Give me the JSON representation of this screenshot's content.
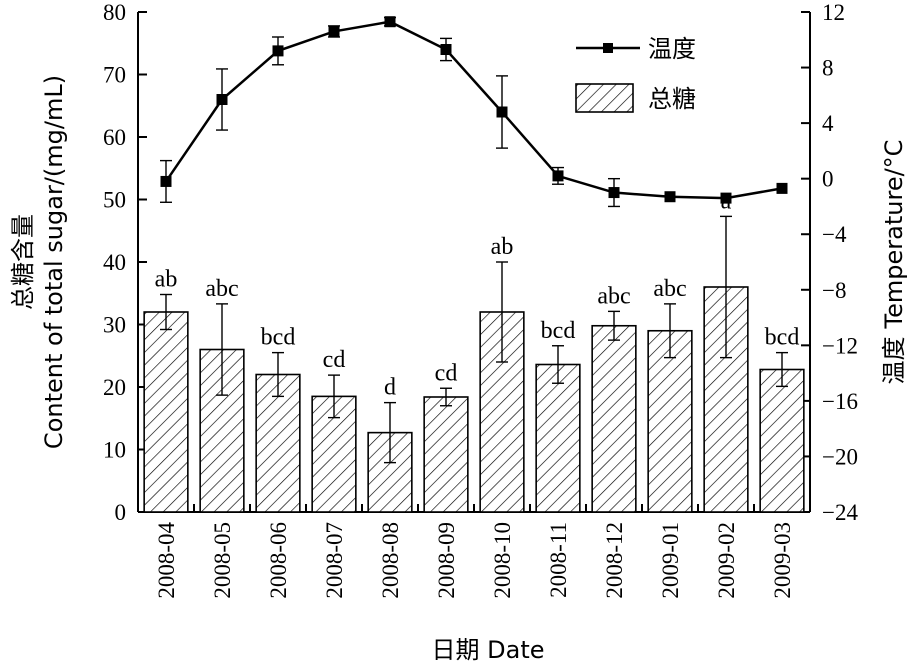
{
  "chart_data": {
    "type": "bar",
    "categories": [
      "2008-04",
      "2008-05",
      "2008-06",
      "2008-07",
      "2008-08",
      "2008-09",
      "2008-10",
      "2008-11",
      "2008-12",
      "2009-01",
      "2009-02",
      "2009-03"
    ],
    "series": [
      {
        "name": "总糖",
        "type": "bar",
        "axis": "left",
        "values": [
          32.0,
          26.0,
          22.0,
          18.5,
          12.7,
          18.4,
          32.0,
          23.6,
          29.8,
          29.0,
          36.0,
          22.8
        ],
        "error": [
          2.8,
          7.3,
          3.5,
          3.4,
          4.8,
          1.4,
          8.0,
          3.0,
          2.3,
          4.3,
          11.3,
          2.7
        ],
        "labels": [
          "ab",
          "abc",
          "bcd",
          "cd",
          "d",
          "cd",
          "ab",
          "bcd",
          "abc",
          "abc",
          "a",
          "bcd"
        ]
      },
      {
        "name": "温度",
        "type": "line",
        "axis": "right",
        "values": [
          -0.2,
          5.7,
          9.2,
          10.6,
          11.3,
          9.3,
          4.8,
          0.2,
          -1.0,
          -1.3,
          -1.4,
          -0.7
        ],
        "error": [
          1.5,
          2.2,
          1.0,
          0.4,
          0.3,
          0.8,
          2.6,
          0.6,
          1.0,
          0.0,
          0.0,
          0.0
        ]
      }
    ],
    "xlabel": "日期 Date",
    "ylabel": "总糖含量 Content of total sugar/(mg/mL)",
    "y2label": "温度 Temperature/°C",
    "ylim": [
      0,
      80
    ],
    "y2lim": [
      -24,
      12
    ],
    "yticks": [
      0,
      10,
      20,
      30,
      40,
      50,
      60,
      70,
      80
    ],
    "y2ticks": [
      -24,
      -20,
      -16,
      -12,
      -8,
      -4,
      0,
      4,
      8,
      12
    ],
    "y2tick_labels": [
      "−24",
      "−20",
      "−16",
      "−12",
      "−8",
      "−4",
      "0",
      "4",
      "8",
      "12"
    ],
    "ylabel_cn": "总糖含量",
    "ylabel_en": "Content of  total sugar/(mg/mL)",
    "y2label_cn": "温度",
    "y2label_en": "Temperature/°C",
    "legend": {
      "position": "top-right",
      "entries": [
        "温度",
        "总糖"
      ]
    },
    "grid": false
  }
}
